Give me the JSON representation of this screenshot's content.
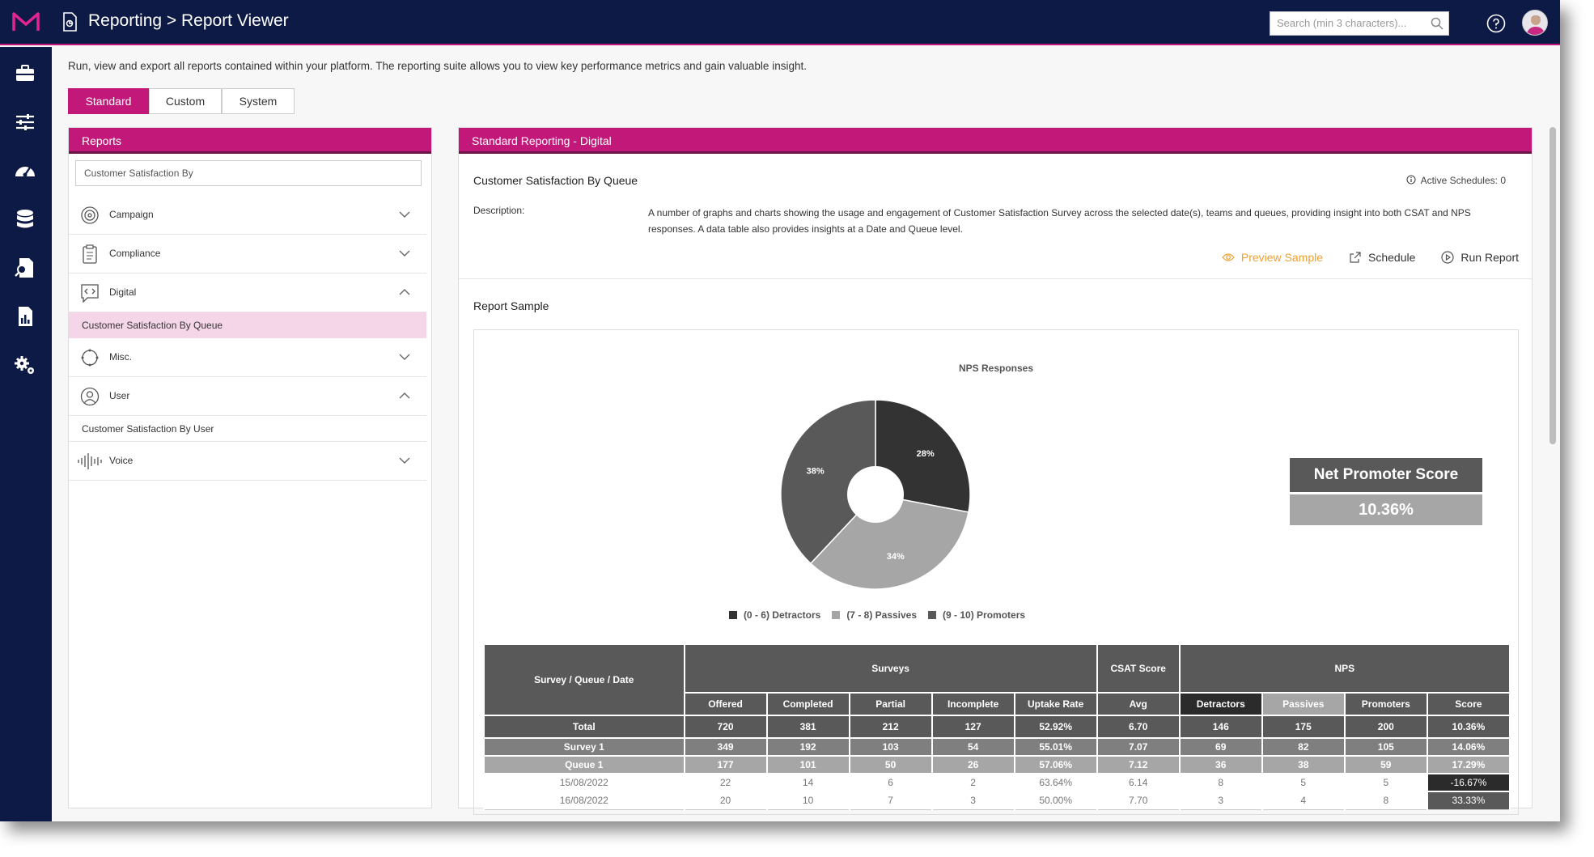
{
  "header": {
    "title": "Reporting > Report Viewer",
    "search_placeholder": "Search (min 3 characters)..."
  },
  "intro": "Run, view and export all reports contained within your platform. The reporting suite allows you to view key performance metrics and gain valuable insight.",
  "tabs": [
    "Standard",
    "Custom",
    "System"
  ],
  "reports_panel": {
    "title": "Reports",
    "search_value": "Customer Satisfaction By",
    "categories": [
      {
        "label": "Campaign",
        "icon": "target-icon",
        "expanded": false
      },
      {
        "label": "Compliance",
        "icon": "clipboard-icon",
        "expanded": false
      },
      {
        "label": "Digital",
        "icon": "chat-code-icon",
        "expanded": true,
        "items": [
          "Customer Satisfaction By Queue"
        ]
      },
      {
        "label": "Misc.",
        "icon": "circle-icon",
        "expanded": false
      },
      {
        "label": "User",
        "icon": "user-icon",
        "expanded": true,
        "items": [
          "Customer Satisfaction By User"
        ]
      },
      {
        "label": "Voice",
        "icon": "waveform-icon",
        "expanded": false
      }
    ]
  },
  "report": {
    "panel_title": "Standard Reporting - Digital",
    "name": "Customer Satisfaction By Queue",
    "active_schedules": "Active Schedules: 0",
    "description_label": "Description:",
    "description": "A number of graphs and charts showing the usage and engagement of Customer Satisfaction Survey across the selected date(s), teams and queues, providing insight into both CSAT and NPS responses. A data table also provides insights at a Date and Queue level.",
    "actions": {
      "preview": "Preview Sample",
      "schedule": "Schedule",
      "run": "Run Report"
    },
    "sample_title": "Report Sample"
  },
  "nps": {
    "label": "Net Promoter Score",
    "value": "10.36%"
  },
  "chart_data": {
    "type": "pie",
    "title": "NPS Responses",
    "donut": true,
    "categories": [
      "(0 - 6) Detractors",
      "(7 - 8) Passives",
      "(9 - 10) Promoters"
    ],
    "values": [
      28,
      34,
      38
    ],
    "labels": [
      "28%",
      "34%",
      "38%"
    ],
    "colors": [
      "#333333",
      "#a6a6a6",
      "#595959"
    ],
    "legend_position": "bottom"
  },
  "table": {
    "group_headers": [
      "Survey / Queue / Date",
      "Surveys",
      "CSAT Score",
      "NPS"
    ],
    "columns": [
      "Offered",
      "Completed",
      "Partial",
      "Incomplete",
      "Uptake Rate",
      "Avg",
      "Detractors",
      "Passives",
      "Promoters",
      "Score"
    ],
    "rows": [
      {
        "type": "total",
        "cells": [
          "Total",
          "720",
          "381",
          "212",
          "127",
          "52.92%",
          "6.70",
          "146",
          "175",
          "200",
          "10.36%"
        ]
      },
      {
        "type": "survey",
        "cells": [
          "Survey 1",
          "349",
          "192",
          "103",
          "54",
          "55.01%",
          "7.07",
          "69",
          "82",
          "105",
          "14.06%"
        ]
      },
      {
        "type": "queue",
        "cells": [
          "Queue 1",
          "177",
          "101",
          "50",
          "26",
          "57.06%",
          "7.12",
          "36",
          "38",
          "59",
          "17.29%"
        ]
      },
      {
        "type": "date",
        "cells": [
          "15/08/2022",
          "22",
          "14",
          "6",
          "2",
          "63.64%",
          "6.14",
          "8",
          "5",
          "5",
          "-16.67%"
        ],
        "score_style": "neg"
      },
      {
        "type": "date",
        "cells": [
          "16/08/2022",
          "20",
          "10",
          "7",
          "3",
          "50.00%",
          "7.70",
          "3",
          "4",
          "8",
          "33.33%"
        ],
        "score_style": "pos"
      }
    ]
  }
}
